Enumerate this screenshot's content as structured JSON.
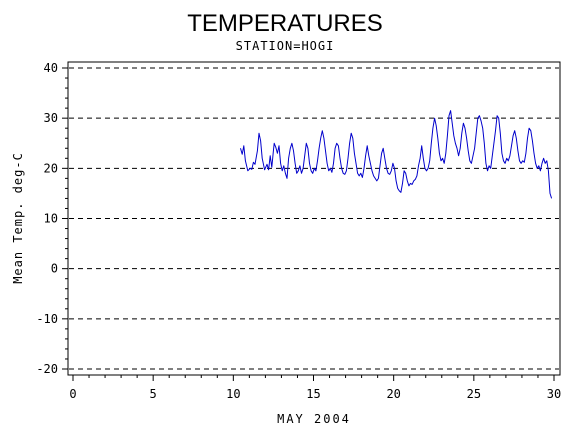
{
  "chart_data": {
    "type": "line",
    "title": "TEMPERATURES",
    "subtitle": "STATION=HOGI",
    "xlabel": "MAY 2004",
    "ylabel": "Mean Temp. deg-C",
    "xlim": [
      0,
      30
    ],
    "ylim": [
      -20,
      40
    ],
    "xticks": [
      0,
      5,
      10,
      15,
      20,
      25,
      30
    ],
    "xtick_labels": [
      "0",
      "5",
      "10",
      "15",
      "20",
      "25",
      "30"
    ],
    "yticks": [
      -20,
      -10,
      0,
      10,
      20,
      30,
      40
    ],
    "ytick_labels": [
      "-20",
      "-10",
      "0",
      "10",
      "20",
      "30",
      "40"
    ],
    "grid": "horizontal dashed at major y ticks",
    "legend": "none",
    "series": [
      {
        "color": "#0000cc",
        "points": [
          [
            10.45,
            24.0
          ],
          [
            10.55,
            22.8
          ],
          [
            10.65,
            24.5
          ],
          [
            10.75,
            21.5
          ],
          [
            10.9,
            19.5
          ],
          [
            11.05,
            20.0
          ],
          [
            11.15,
            19.8
          ],
          [
            11.25,
            21.2
          ],
          [
            11.35,
            20.8
          ],
          [
            11.5,
            23.5
          ],
          [
            11.6,
            27.0
          ],
          [
            11.7,
            25.5
          ],
          [
            11.8,
            22.0
          ],
          [
            11.95,
            19.7
          ],
          [
            12.1,
            20.8
          ],
          [
            12.2,
            19.7
          ],
          [
            12.3,
            22.5
          ],
          [
            12.4,
            20.2
          ],
          [
            12.5,
            23.5
          ],
          [
            12.55,
            25.0
          ],
          [
            12.65,
            24.2
          ],
          [
            12.75,
            23.0
          ],
          [
            12.85,
            24.5
          ],
          [
            12.95,
            21.0
          ],
          [
            13.05,
            19.5
          ],
          [
            13.15,
            20.5
          ],
          [
            13.25,
            19.0
          ],
          [
            13.35,
            18.0
          ],
          [
            13.45,
            22.0
          ],
          [
            13.55,
            24.0
          ],
          [
            13.65,
            25.0
          ],
          [
            13.75,
            23.5
          ],
          [
            13.85,
            21.0
          ],
          [
            13.95,
            19.0
          ],
          [
            14.05,
            19.5
          ],
          [
            14.15,
            20.5
          ],
          [
            14.25,
            19.0
          ],
          [
            14.35,
            20.0
          ],
          [
            14.45,
            22.5
          ],
          [
            14.55,
            25.0
          ],
          [
            14.65,
            24.0
          ],
          [
            14.75,
            21.0
          ],
          [
            14.85,
            19.5
          ],
          [
            14.95,
            19.0
          ],
          [
            15.05,
            20.0
          ],
          [
            15.15,
            19.5
          ],
          [
            15.25,
            21.5
          ],
          [
            15.35,
            24.0
          ],
          [
            15.45,
            26.0
          ],
          [
            15.55,
            27.5
          ],
          [
            15.65,
            26.0
          ],
          [
            15.75,
            23.5
          ],
          [
            15.85,
            21.0
          ],
          [
            15.95,
            19.5
          ],
          [
            16.05,
            20.0
          ],
          [
            16.15,
            19.2
          ],
          [
            16.25,
            21.0
          ],
          [
            16.35,
            24.0
          ],
          [
            16.45,
            25.0
          ],
          [
            16.55,
            24.5
          ],
          [
            16.65,
            22.0
          ],
          [
            16.75,
            20.0
          ],
          [
            16.85,
            19.0
          ],
          [
            16.95,
            18.8
          ],
          [
            17.05,
            19.5
          ],
          [
            17.15,
            22.0
          ],
          [
            17.25,
            25.0
          ],
          [
            17.35,
            27.0
          ],
          [
            17.45,
            26.0
          ],
          [
            17.55,
            23.0
          ],
          [
            17.65,
            21.0
          ],
          [
            17.75,
            19.0
          ],
          [
            17.85,
            18.5
          ],
          [
            17.95,
            19.0
          ],
          [
            18.05,
            18.2
          ],
          [
            18.15,
            20.0
          ],
          [
            18.25,
            22.5
          ],
          [
            18.35,
            24.5
          ],
          [
            18.45,
            22.5
          ],
          [
            18.55,
            21.0
          ],
          [
            18.65,
            19.5
          ],
          [
            18.75,
            18.5
          ],
          [
            18.85,
            18.0
          ],
          [
            18.95,
            17.5
          ],
          [
            19.05,
            18.0
          ],
          [
            19.15,
            20.5
          ],
          [
            19.25,
            23.0
          ],
          [
            19.35,
            24.0
          ],
          [
            19.45,
            22.0
          ],
          [
            19.55,
            20.0
          ],
          [
            19.65,
            19.0
          ],
          [
            19.75,
            18.8
          ],
          [
            19.85,
            19.5
          ],
          [
            19.95,
            21.0
          ],
          [
            20.05,
            20.0
          ],
          [
            20.15,
            17.5
          ],
          [
            20.25,
            16.0
          ],
          [
            20.35,
            15.5
          ],
          [
            20.45,
            15.2
          ],
          [
            20.55,
            17.0
          ],
          [
            20.65,
            19.5
          ],
          [
            20.75,
            19.0
          ],
          [
            20.85,
            17.5
          ],
          [
            20.95,
            16.5
          ],
          [
            21.05,
            17.0
          ],
          [
            21.15,
            16.8
          ],
          [
            21.25,
            17.5
          ],
          [
            21.35,
            17.8
          ],
          [
            21.45,
            18.5
          ],
          [
            21.55,
            20.5
          ],
          [
            21.65,
            22.0
          ],
          [
            21.75,
            24.5
          ],
          [
            21.85,
            22.0
          ],
          [
            21.95,
            20.0
          ],
          [
            22.05,
            19.5
          ],
          [
            22.15,
            20.0
          ],
          [
            22.25,
            21.5
          ],
          [
            22.35,
            25.0
          ],
          [
            22.45,
            28.0
          ],
          [
            22.55,
            30.0
          ],
          [
            22.65,
            28.5
          ],
          [
            22.75,
            26.0
          ],
          [
            22.85,
            23.0
          ],
          [
            22.95,
            21.5
          ],
          [
            23.05,
            22.0
          ],
          [
            23.15,
            21.0
          ],
          [
            23.25,
            23.0
          ],
          [
            23.35,
            26.5
          ],
          [
            23.45,
            30.5
          ],
          [
            23.55,
            31.5
          ],
          [
            23.65,
            29.0
          ],
          [
            23.75,
            26.5
          ],
          [
            23.85,
            25.0
          ],
          [
            23.95,
            24.0
          ],
          [
            24.05,
            22.5
          ],
          [
            24.15,
            24.0
          ],
          [
            24.25,
            27.0
          ],
          [
            24.35,
            29.0
          ],
          [
            24.45,
            28.0
          ],
          [
            24.55,
            26.0
          ],
          [
            24.65,
            23.5
          ],
          [
            24.75,
            21.5
          ],
          [
            24.85,
            21.0
          ],
          [
            24.95,
            22.5
          ],
          [
            25.05,
            24.0
          ],
          [
            25.15,
            27.0
          ],
          [
            25.25,
            30.0
          ],
          [
            25.35,
            30.5
          ],
          [
            25.45,
            29.5
          ],
          [
            25.55,
            28.0
          ],
          [
            25.65,
            25.0
          ],
          [
            25.75,
            21.0
          ],
          [
            25.85,
            19.5
          ],
          [
            25.95,
            20.5
          ],
          [
            26.05,
            20.0
          ],
          [
            26.15,
            22.5
          ],
          [
            26.25,
            25.0
          ],
          [
            26.35,
            27.5
          ],
          [
            26.45,
            30.5
          ],
          [
            26.55,
            30.0
          ],
          [
            26.65,
            27.0
          ],
          [
            26.75,
            23.0
          ],
          [
            26.85,
            21.5
          ],
          [
            26.95,
            21.0
          ],
          [
            27.05,
            22.0
          ],
          [
            27.15,
            21.5
          ],
          [
            27.25,
            22.5
          ],
          [
            27.35,
            24.5
          ],
          [
            27.45,
            26.5
          ],
          [
            27.55,
            27.5
          ],
          [
            27.65,
            26.0
          ],
          [
            27.75,
            23.5
          ],
          [
            27.85,
            21.5
          ],
          [
            27.95,
            21.0
          ],
          [
            28.05,
            21.5
          ],
          [
            28.15,
            21.2
          ],
          [
            28.25,
            23.0
          ],
          [
            28.35,
            26.0
          ],
          [
            28.45,
            28.0
          ],
          [
            28.55,
            27.5
          ],
          [
            28.65,
            25.5
          ],
          [
            28.75,
            23.0
          ],
          [
            28.85,
            21.0
          ],
          [
            28.95,
            20.0
          ],
          [
            29.05,
            20.5
          ],
          [
            29.15,
            19.5
          ],
          [
            29.25,
            21.0
          ],
          [
            29.35,
            22.0
          ],
          [
            29.45,
            21.0
          ],
          [
            29.55,
            21.5
          ],
          [
            29.65,
            19.5
          ],
          [
            29.75,
            15.0
          ],
          [
            29.85,
            14.0
          ]
        ]
      }
    ]
  }
}
